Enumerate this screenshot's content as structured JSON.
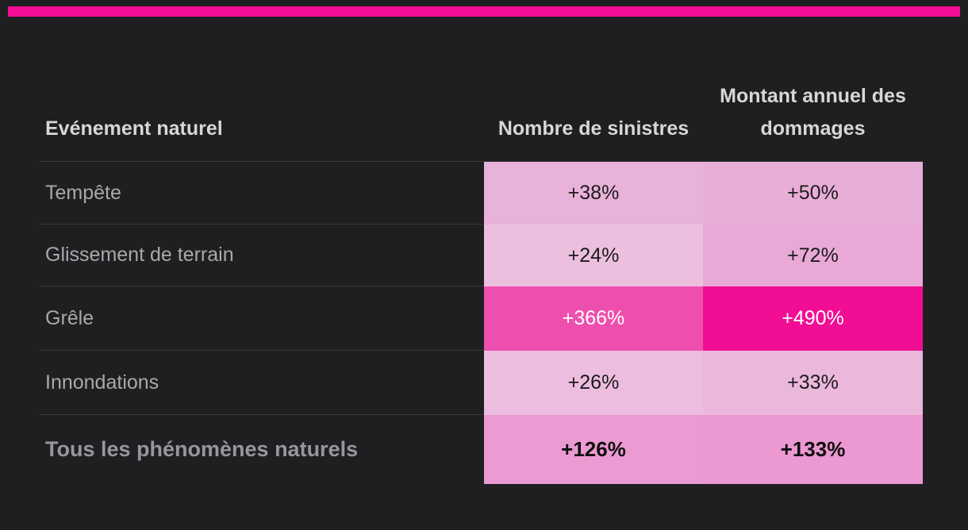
{
  "theme": {
    "background_color": "#1f1f21",
    "accent_color": "#f20e94",
    "divider_color": "#38383a",
    "header_text_color": "#d7d7d9",
    "row_label_color": "#a9a9ac",
    "total_label_color": "#97979b"
  },
  "accent_bar": {
    "color": "#f20e94"
  },
  "table": {
    "header": {
      "col1": "Evénement naturel",
      "col2": "Nombre de sinistres",
      "col3": "Montant annuel des dommages"
    },
    "rows": [
      {
        "label": "Tempête",
        "cells": [
          {
            "value": "+38%",
            "bg": "#e9b2d9",
            "fg": "#1b1b1b"
          },
          {
            "value": "+50%",
            "bg": "#e9aed8",
            "fg": "#1b1b1b"
          }
        ]
      },
      {
        "label": "Glissement de terrain",
        "cells": [
          {
            "value": "+24%",
            "bg": "#ecbfdf",
            "fg": "#1b1b1b"
          },
          {
            "value": "+72%",
            "bg": "#e9a9d6",
            "fg": "#1b1b1b"
          }
        ]
      },
      {
        "label": "Grêle",
        "cells": [
          {
            "value": "+366%",
            "bg": "#ee4fae",
            "fg": "#ffffff"
          },
          {
            "value": "+490%",
            "bg": "#f20e94",
            "fg": "#ffffff"
          }
        ]
      },
      {
        "label": "Innondations",
        "cells": [
          {
            "value": "+26%",
            "bg": "#ecbddf",
            "fg": "#1b1b1b"
          },
          {
            "value": "+33%",
            "bg": "#ebb7db",
            "fg": "#1b1b1b"
          }
        ]
      },
      {
        "label": "Tous les phénomènes naturels",
        "cells": [
          {
            "value": "+126%",
            "bg": "#ec9ad2",
            "fg": "#101010"
          },
          {
            "value": "+133%",
            "bg": "#ec98d1",
            "fg": "#101010"
          }
        ]
      }
    ]
  },
  "chart_data": {
    "type": "table",
    "subtype": "heatmap-table",
    "columns": [
      "Evénement naturel",
      "Nombre de sinistres",
      "Montant annuel des dommages"
    ],
    "rows": [
      [
        "Tempête",
        "+38%",
        "+50%"
      ],
      [
        "Glissement de terrain",
        "+24%",
        "+72%"
      ],
      [
        "Grêle",
        "+366%",
        "+490%"
      ],
      [
        "Innondations",
        "+26%",
        "+33%"
      ],
      [
        "Tous les phénomènes naturels",
        "+126%",
        "+133%"
      ]
    ],
    "series": [
      {
        "name": "Nombre de sinistres (%)",
        "values": [
          38,
          24,
          366,
          26,
          126
        ]
      },
      {
        "name": "Montant annuel des dommages (%)",
        "values": [
          50,
          72,
          490,
          33,
          133
        ]
      }
    ],
    "categories": [
      "Tempête",
      "Glissement de terrain",
      "Grêle",
      "Innondations",
      "Tous les phénomènes naturels"
    ],
    "legend_position": "none",
    "notes": "Cell background intensity scales from light pink (low %) to vivid magenta (high %); Grêle row values shown in white text on magenta"
  }
}
